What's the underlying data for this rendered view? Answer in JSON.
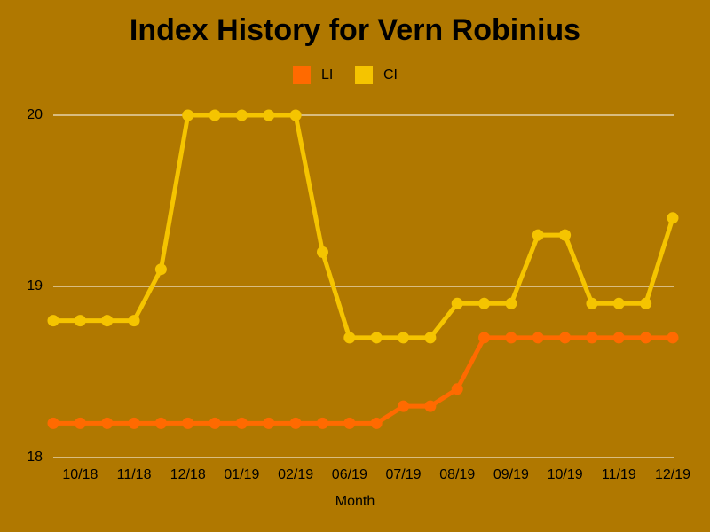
{
  "chart_data": {
    "type": "line",
    "title": "Index History for Vern Robinius",
    "x_label": "Month",
    "categories": [
      null,
      "10/18",
      null,
      "11/18",
      null,
      "12/18",
      null,
      "01/19",
      null,
      "02/19",
      null,
      "06/19",
      null,
      "07/19",
      null,
      "08/19",
      null,
      "09/19",
      null,
      "10/19",
      null,
      "11/19",
      null,
      "12/19"
    ],
    "series": [
      {
        "name": "LI",
        "color": "#ff6a00",
        "values": [
          18.2,
          18.2,
          18.2,
          18.2,
          18.2,
          18.2,
          18.2,
          18.2,
          18.2,
          18.2,
          18.2,
          18.2,
          18.2,
          18.3,
          18.3,
          18.4,
          18.7,
          18.7,
          18.7,
          18.7,
          18.7,
          18.7,
          18.7,
          18.7
        ]
      },
      {
        "name": "CI",
        "color": "#f5c400",
        "values": [
          18.8,
          18.8,
          18.8,
          18.8,
          19.1,
          20,
          20,
          20,
          20,
          20,
          19.2,
          18.7,
          18.7,
          18.7,
          18.7,
          18.9,
          18.9,
          18.9,
          19.3,
          19.3,
          18.9,
          18.9,
          18.9,
          19.4
        ]
      }
    ],
    "ylim": [
      18,
      20
    ],
    "yticks": [
      18,
      19,
      20
    ],
    "grid": true
  }
}
